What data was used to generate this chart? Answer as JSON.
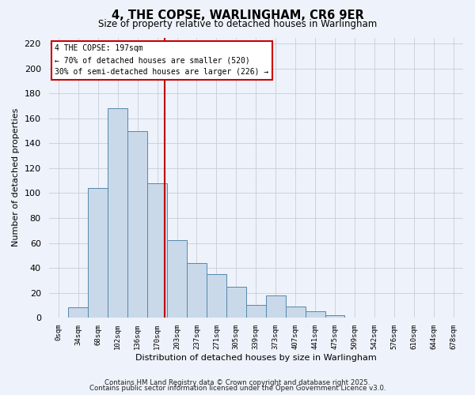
{
  "title": "4, THE COPSE, WARLINGHAM, CR6 9ER",
  "subtitle": "Size of property relative to detached houses in Warlingham",
  "xlabel": "Distribution of detached houses by size in Warlingham",
  "ylabel": "Number of detached properties",
  "bar_labels": [
    "0sqm",
    "34sqm",
    "68sqm",
    "102sqm",
    "136sqm",
    "170sqm",
    "203sqm",
    "237sqm",
    "271sqm",
    "305sqm",
    "339sqm",
    "373sqm",
    "407sqm",
    "441sqm",
    "475sqm",
    "509sqm",
    "542sqm",
    "576sqm",
    "610sqm",
    "644sqm",
    "678sqm"
  ],
  "bar_values": [
    0,
    8,
    104,
    168,
    150,
    108,
    62,
    44,
    35,
    25,
    10,
    18,
    9,
    5,
    2,
    0,
    0,
    0,
    0,
    0,
    0
  ],
  "bar_color": "#c9d9ea",
  "bar_edge_color": "#5588aa",
  "ylim": [
    0,
    225
  ],
  "yticks": [
    0,
    20,
    40,
    60,
    80,
    100,
    120,
    140,
    160,
    180,
    200,
    220
  ],
  "vline_x": 5.88,
  "vline_color": "#bb0000",
  "annotation_title": "4 THE COPSE: 197sqm",
  "annotation_line1": "← 70% of detached houses are smaller (520)",
  "annotation_line2": "30% of semi-detached houses are larger (226) →",
  "annotation_box_color": "#ffffff",
  "annotation_box_edge": "#cc0000",
  "background_color": "#eef2fa",
  "grid_color": "#c8ccd8",
  "footer1": "Contains HM Land Registry data © Crown copyright and database right 2025.",
  "footer2": "Contains public sector information licensed under the Open Government Licence v3.0."
}
